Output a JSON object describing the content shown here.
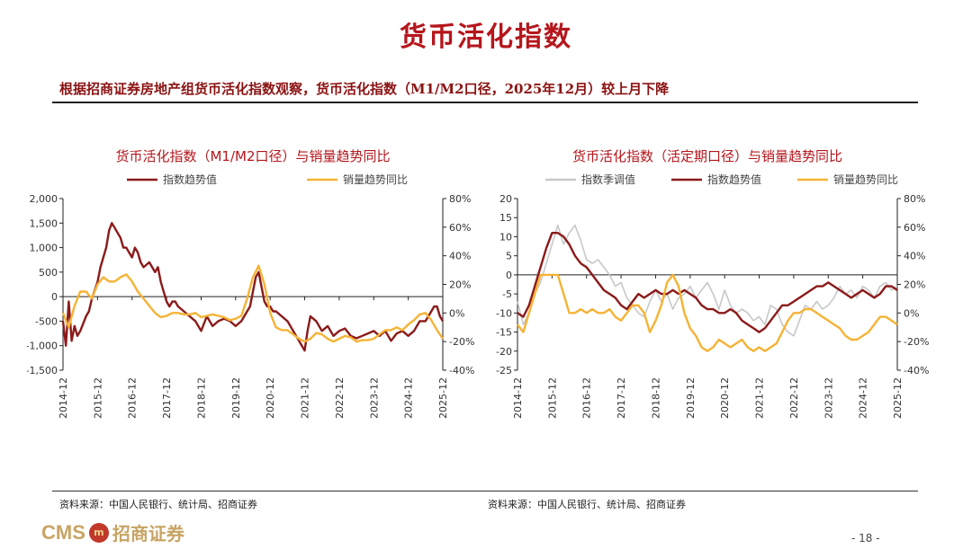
{
  "title": "货币活化指数",
  "subtitle": "根据招商证券房地产组货币活化指数观察，货币活化指数（M1/M2口径，2025年12月）较上月下降",
  "source_left": "资料来源：中国人民银行、统计局、招商证券",
  "source_right": "资料来源：中国人民银行、统计局、招商证券",
  "page_number": "- 18 -",
  "logo": {
    "en": "CMS",
    "emblem": "m",
    "cn": "招商证券"
  },
  "colors": {
    "accent": "#b5161c",
    "index_line": "#8b1a1a",
    "sales_line": "#f5b335",
    "seasonal_line": "#c8c8c8"
  },
  "chart_data": [
    {
      "type": "line",
      "title": "货币活化指数（M1/M2口径）与销量趋势同比",
      "x_tick_labels": [
        "2014-12",
        "2015-12",
        "2016-12",
        "2017-12",
        "2018-12",
        "2019-12",
        "2020-12",
        "2021-12",
        "2022-12",
        "2023-12",
        "2024-12",
        "2025-12"
      ],
      "x_range": [
        0,
        132
      ],
      "left_axis": {
        "ticks": [
          "2,000",
          "1,500",
          "1,000",
          "500",
          "0",
          "-500",
          "-1,000",
          "-1,500"
        ],
        "ylim": [
          -1500,
          2000
        ]
      },
      "right_axis": {
        "ticks": [
          "80%",
          "60%",
          "40%",
          "20%",
          "0%",
          "-20%",
          "-40%"
        ],
        "ylim": [
          -40,
          80
        ]
      },
      "series": [
        {
          "name": "指数趋势值",
          "axis": "left",
          "color": "#8b1a1a",
          "x": [
            0,
            1,
            2,
            3,
            4,
            5,
            6,
            8,
            9,
            10,
            12,
            13,
            14,
            15,
            16,
            17,
            18,
            19,
            20,
            21,
            22,
            24,
            25,
            26,
            27,
            28,
            30,
            32,
            33,
            34,
            36,
            37,
            38,
            39,
            40,
            42,
            44,
            46,
            48,
            50,
            52,
            54,
            56,
            58,
            60,
            62,
            64,
            65,
            66,
            67,
            68,
            70,
            71,
            72,
            73,
            74,
            76,
            78,
            80,
            82,
            84,
            85,
            86,
            88,
            90,
            92,
            94,
            96,
            98,
            100,
            102,
            104,
            106,
            108,
            110,
            112,
            114,
            116,
            118,
            120,
            122,
            124,
            126,
            128,
            129,
            130,
            131,
            132
          ],
          "y": [
            -500,
            -1000,
            -100,
            -900,
            -600,
            -800,
            -700,
            -400,
            -300,
            -50,
            300,
            600,
            800,
            1000,
            1350,
            1500,
            1400,
            1300,
            1200,
            1000,
            1000,
            800,
            1000,
            900,
            700,
            600,
            700,
            500,
            600,
            300,
            -100,
            -200,
            -100,
            -100,
            -200,
            -300,
            -400,
            -500,
            -700,
            -400,
            -600,
            -500,
            -450,
            -500,
            -600,
            -500,
            -300,
            -200,
            100,
            400,
            500,
            -100,
            -200,
            -200,
            -300,
            -300,
            -400,
            -500,
            -700,
            -900,
            -1100,
            -700,
            -400,
            -500,
            -700,
            -600,
            -800,
            -700,
            -650,
            -800,
            -850,
            -800,
            -750,
            -700,
            -800,
            -700,
            -900,
            -750,
            -700,
            -800,
            -700,
            -500,
            -500,
            -300,
            -200,
            -200,
            -400,
            -500
          ]
        },
        {
          "name": "销量趋势同比",
          "axis": "right",
          "color": "#f5b335",
          "x": [
            0,
            2,
            4,
            6,
            8,
            10,
            12,
            14,
            16,
            18,
            20,
            22,
            24,
            26,
            28,
            30,
            32,
            34,
            36,
            38,
            40,
            42,
            44,
            46,
            48,
            50,
            52,
            54,
            56,
            58,
            60,
            62,
            64,
            66,
            68,
            70,
            72,
            74,
            76,
            78,
            80,
            82,
            84,
            86,
            88,
            90,
            92,
            94,
            96,
            98,
            100,
            102,
            104,
            106,
            108,
            110,
            112,
            114,
            116,
            118,
            120,
            122,
            124,
            126,
            128,
            130,
            132
          ],
          "y": [
            0,
            -10,
            5,
            15,
            15,
            10,
            20,
            25,
            22,
            22,
            25,
            27,
            22,
            15,
            10,
            5,
            0,
            -3,
            -2,
            0,
            0,
            -1,
            -1,
            0,
            -3,
            -2,
            -1,
            -2,
            -3,
            -5,
            -4,
            -2,
            10,
            25,
            33,
            20,
            0,
            -10,
            -12,
            -12,
            -15,
            -18,
            -20,
            -18,
            -14,
            -15,
            -18,
            -20,
            -18,
            -16,
            -17,
            -20,
            -19,
            -19,
            -18,
            -15,
            -12,
            -12,
            -10,
            -12,
            -8,
            -5,
            -1,
            0,
            -5,
            -12,
            -18
          ]
        }
      ]
    },
    {
      "type": "line",
      "title": "货币活化指数（活定期口径）与销量趋势同比",
      "x_tick_labels": [
        "2014-12",
        "2015-12",
        "2016-12",
        "2017-12",
        "2018-12",
        "2019-12",
        "2020-12",
        "2021-12",
        "2022-12",
        "2023-12",
        "2024-12",
        "2025-12"
      ],
      "x_range": [
        0,
        132
      ],
      "left_axis": {
        "ticks": [
          "20",
          "15",
          "10",
          "5",
          "0",
          "-5",
          "-10",
          "-15",
          "-20",
          "-25"
        ],
        "ylim": [
          -25,
          20
        ]
      },
      "right_axis": {
        "ticks": [
          "80%",
          "60%",
          "40%",
          "20%",
          "0%",
          "-20%",
          "-40%"
        ],
        "ylim": [
          -40,
          80
        ]
      },
      "series": [
        {
          "name": "指数季调值",
          "axis": "left",
          "color": "#c8c8c8",
          "x": [
            0,
            2,
            4,
            6,
            8,
            10,
            12,
            14,
            16,
            18,
            20,
            22,
            24,
            26,
            28,
            30,
            32,
            34,
            36,
            38,
            40,
            42,
            44,
            46,
            48,
            50,
            52,
            54,
            56,
            58,
            60,
            62,
            64,
            66,
            68,
            70,
            72,
            74,
            76,
            78,
            80,
            82,
            84,
            86,
            88,
            90,
            92,
            94,
            96,
            98,
            100,
            102,
            104,
            106,
            108,
            110,
            112,
            114,
            116,
            118,
            120,
            122,
            124,
            126,
            128,
            130,
            132
          ],
          "y": [
            -7,
            -13,
            -10,
            -5,
            -2,
            3,
            8,
            13,
            8,
            11,
            13,
            9,
            4,
            3,
            4,
            2,
            0,
            -3,
            -2,
            -6,
            -8,
            -10,
            -11,
            -7,
            -4,
            -7,
            -5,
            -9,
            -6,
            -5,
            -3,
            -6,
            -4,
            -2,
            -5,
            -9,
            -4,
            -8,
            -10,
            -9,
            -10,
            -12,
            -11,
            -13,
            -8,
            -9,
            -13,
            -15,
            -16,
            -12,
            -8,
            -9,
            -7,
            -9,
            -8,
            -6,
            -3,
            -5,
            -4,
            -6,
            -3,
            -4,
            -6,
            -3,
            -2,
            -4,
            -3
          ]
        },
        {
          "name": "指数趋势值",
          "axis": "left",
          "color": "#8b1a1a",
          "x": [
            0,
            2,
            4,
            6,
            8,
            10,
            12,
            14,
            16,
            18,
            20,
            22,
            24,
            26,
            28,
            30,
            32,
            34,
            36,
            38,
            40,
            42,
            44,
            46,
            48,
            50,
            52,
            54,
            56,
            58,
            60,
            62,
            64,
            66,
            68,
            70,
            72,
            74,
            76,
            78,
            80,
            82,
            84,
            86,
            88,
            90,
            92,
            94,
            96,
            98,
            100,
            102,
            104,
            106,
            108,
            110,
            112,
            114,
            116,
            118,
            120,
            122,
            124,
            126,
            128,
            130,
            132
          ],
          "y": [
            -10,
            -11,
            -8,
            -3,
            2,
            7,
            11,
            11,
            10,
            8,
            5,
            3,
            2,
            0,
            -2,
            -4,
            -5,
            -6,
            -8,
            -9,
            -7,
            -5,
            -6,
            -5,
            -4,
            -5,
            -5,
            -4,
            -5,
            -4,
            -5,
            -6,
            -8,
            -9,
            -9,
            -10,
            -10,
            -9,
            -10,
            -12,
            -13,
            -14,
            -15,
            -14,
            -12,
            -10,
            -8,
            -8,
            -7,
            -6,
            -5,
            -4,
            -3,
            -3,
            -2,
            -3,
            -4,
            -5,
            -6,
            -5,
            -4,
            -5,
            -6,
            -5,
            -3,
            -3,
            -4
          ]
        },
        {
          "name": "销量趋势同比",
          "axis": "left",
          "color": "#f5b335",
          "x": [
            0,
            2,
            4,
            6,
            8,
            10,
            12,
            14,
            16,
            18,
            20,
            22,
            24,
            26,
            28,
            30,
            32,
            34,
            36,
            38,
            40,
            42,
            44,
            46,
            48,
            50,
            52,
            54,
            56,
            58,
            60,
            62,
            64,
            66,
            68,
            70,
            72,
            74,
            76,
            78,
            80,
            82,
            84,
            86,
            88,
            90,
            92,
            94,
            96,
            98,
            100,
            102,
            104,
            106,
            108,
            110,
            112,
            114,
            116,
            118,
            120,
            122,
            124,
            126,
            128,
            130,
            132
          ],
          "y": [
            -13,
            -15,
            -10,
            -5,
            0,
            0,
            0,
            0,
            -5,
            -10,
            -10,
            -9,
            -10,
            -9,
            -10,
            -10,
            -9,
            -11,
            -12,
            -10,
            -8,
            -8,
            -10,
            -15,
            -12,
            -8,
            -2,
            0,
            -3,
            -10,
            -14,
            -16,
            -19,
            -20,
            -19,
            -17,
            -18,
            -19,
            -18,
            -17,
            -19,
            -20,
            -19,
            -20,
            -19,
            -18,
            -15,
            -12,
            -10,
            -10,
            -9,
            -9,
            -10,
            -11,
            -12,
            -13,
            -14,
            -16,
            -17,
            -17,
            -16,
            -15,
            -13,
            -11,
            -11,
            -12,
            -13
          ]
        }
      ]
    }
  ]
}
